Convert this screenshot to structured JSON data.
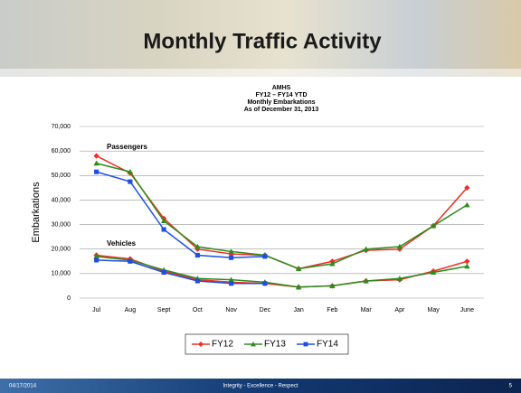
{
  "slide": {
    "title": "Monthly Traffic Activity"
  },
  "footer": {
    "date": "04/17/2014",
    "tagline": "Integrity - Excellence - Respect",
    "page": "5"
  },
  "chart_data": {
    "type": "line",
    "title": [
      "AMHS",
      "FY12 – FY14 YTD",
      "Monthly Embarkations",
      "As of December 31, 2013"
    ],
    "y_label": "Embarkations",
    "annotations": [
      "Passengers",
      "Vehicles"
    ],
    "categories": [
      "Jul",
      "Aug",
      "Sept",
      "Oct",
      "Nov",
      "Dec",
      "Jan",
      "Feb",
      "Mar",
      "Apr",
      "May",
      "June"
    ],
    "ylim": [
      0,
      70000
    ],
    "yticks": [
      0,
      {
        "value": 10000,
        "label": "10,000"
      },
      {
        "value": 20000,
        "label": "20,000"
      },
      {
        "value": 30000,
        "label": "30,000"
      },
      {
        "value": 40000,
        "label": "40,000"
      },
      {
        "value": 50000,
        "label": "50,000"
      },
      {
        "value": 60000,
        "label": "60,000"
      },
      {
        "value": 70000,
        "label": "70,000"
      }
    ],
    "grid": true,
    "series": [
      {
        "name": "FY12",
        "color": "#ee3124",
        "marker": "diamond",
        "values": [
          58000,
          51000,
          32500,
          20000,
          18000,
          17500,
          12000,
          15000,
          19500,
          20000,
          29500,
          45000
        ],
        "vehicles": [
          17500,
          16000,
          11000,
          7500,
          6500,
          6000,
          4500,
          5000,
          7000,
          7500,
          11000,
          15000
        ]
      },
      {
        "name": "FY13",
        "color": "#2e8b1e",
        "marker": "triangle",
        "values": [
          55000,
          51500,
          31500,
          21000,
          19000,
          17500,
          12000,
          14000,
          20000,
          21000,
          29500,
          38000
        ],
        "vehicles": [
          17000,
          15500,
          11500,
          8000,
          7500,
          6500,
          4500,
          5000,
          7000,
          8000,
          10500,
          13000
        ]
      },
      {
        "name": "FY14",
        "color": "#1f4ee0",
        "marker": "square",
        "values": [
          51500,
          47500,
          28000,
          17500,
          16500,
          17000,
          null,
          null,
          null,
          null,
          null,
          null
        ],
        "vehicles": [
          15500,
          15000,
          10500,
          7000,
          6000,
          6000,
          null,
          null,
          null,
          null,
          null,
          null
        ]
      }
    ]
  }
}
